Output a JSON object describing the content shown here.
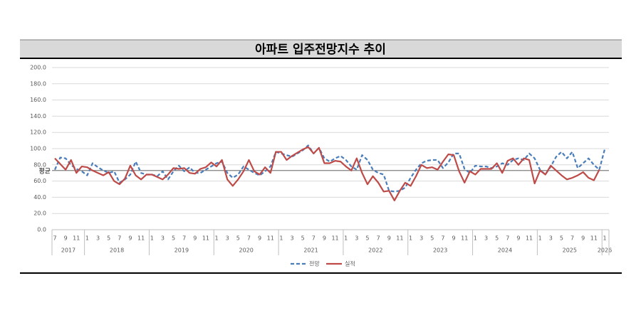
{
  "chart_data": {
    "type": "line",
    "title": "아파트 입주전망지수 추이",
    "categories": [
      "7",
      null,
      "9",
      null,
      "11",
      null,
      "1",
      null,
      "3",
      null,
      "5",
      null,
      "7",
      null,
      "9",
      null,
      "11",
      null,
      "1",
      null,
      "3",
      null,
      "5",
      null,
      "7",
      null,
      "9",
      null,
      "11",
      null,
      "1",
      null,
      "3",
      null,
      "5",
      null,
      "7",
      null,
      "9",
      null,
      "11",
      null,
      "1",
      null,
      "3",
      null,
      "5",
      null,
      "7",
      null,
      "9",
      null,
      "11",
      null,
      "1",
      null,
      "3",
      null,
      "5",
      null,
      "7",
      null,
      "9",
      null,
      "11",
      null,
      "1",
      null,
      "3",
      null,
      "5",
      null,
      "7",
      null,
      "9",
      null,
      "11",
      null,
      "1",
      null,
      "3",
      null,
      "5",
      null,
      "7",
      null,
      "9",
      null,
      "11",
      null,
      "1",
      null,
      "3",
      null,
      "5",
      null,
      "7",
      null,
      "9",
      null,
      "11",
      null,
      "1"
    ],
    "years": [
      "2017",
      "2018",
      "2019",
      "2020",
      "2021",
      "2022",
      "2023",
      "2024",
      "2025",
      "2026"
    ],
    "series": [
      {
        "name": "전망",
        "color": "#4a7ebb",
        "dashed": true,
        "values": [
          74,
          89,
          88,
          80,
          75,
          72,
          67,
          82,
          77,
          73,
          70,
          72,
          58,
          62,
          68,
          84,
          70,
          68,
          68,
          66,
          72,
          62,
          72,
          79,
          72,
          77,
          70,
          70,
          74,
          78,
          82,
          84,
          70,
          64,
          68,
          78,
          74,
          70,
          67,
          72,
          78,
          96,
          94,
          92,
          90,
          94,
          98,
          104,
          94,
          101,
          88,
          84,
          88,
          91,
          86,
          78,
          74,
          92,
          86,
          74,
          70,
          68,
          48,
          47,
          48,
          52,
          64,
          74,
          82,
          85,
          86,
          86,
          76,
          83,
          94,
          94,
          75,
          70,
          79,
          78,
          78,
          76,
          78,
          82,
          80,
          86,
          88,
          86,
          94,
          88,
          74,
          68,
          78,
          90,
          96,
          88,
          96,
          76,
          82,
          88,
          80,
          74,
          99
        ]
      },
      {
        "name": "실적",
        "color": "#be4b48",
        "dashed": false,
        "values": [
          88,
          81,
          74,
          86,
          70,
          78,
          77,
          73,
          70,
          67,
          71,
          60,
          56,
          63,
          79,
          67,
          62,
          68,
          68,
          65,
          62,
          68,
          76,
          75,
          76,
          70,
          69,
          75,
          77,
          83,
          78,
          86,
          62,
          54,
          62,
          72,
          86,
          72,
          68,
          77,
          70,
          96,
          96,
          86,
          91,
          95,
          99,
          102,
          94,
          101,
          82,
          82,
          85,
          84,
          78,
          73,
          88,
          70,
          56,
          66,
          58,
          47,
          48,
          36,
          48,
          58,
          54,
          66,
          80,
          76,
          77,
          74,
          84,
          93,
          92,
          72,
          58,
          72,
          68,
          75,
          75,
          75,
          82,
          70,
          85,
          88,
          80,
          88,
          86,
          57,
          73,
          68,
          79,
          73,
          67,
          62,
          64,
          67,
          71,
          64,
          61,
          74,
          null
        ]
      }
    ],
    "average": {
      "value": 73,
      "label": "평균"
    },
    "ylim": [
      0,
      200
    ],
    "yticks": [
      {
        "value": 0,
        "label": "0.0"
      },
      {
        "value": 20,
        "label": "20.0"
      },
      {
        "value": 40,
        "label": "40.0"
      },
      {
        "value": 60,
        "label": "60.0"
      },
      {
        "value": 80,
        "label": "80.0"
      },
      {
        "value": 100,
        "label": "100.0"
      },
      {
        "value": 120,
        "label": "120.0"
      },
      {
        "value": 140,
        "label": "140.0"
      },
      {
        "value": 160,
        "label": "160.0"
      },
      {
        "value": 180,
        "label": "180.0"
      },
      {
        "value": 200,
        "label": "200.0"
      }
    ],
    "grid": true,
    "legend": "bottom"
  }
}
